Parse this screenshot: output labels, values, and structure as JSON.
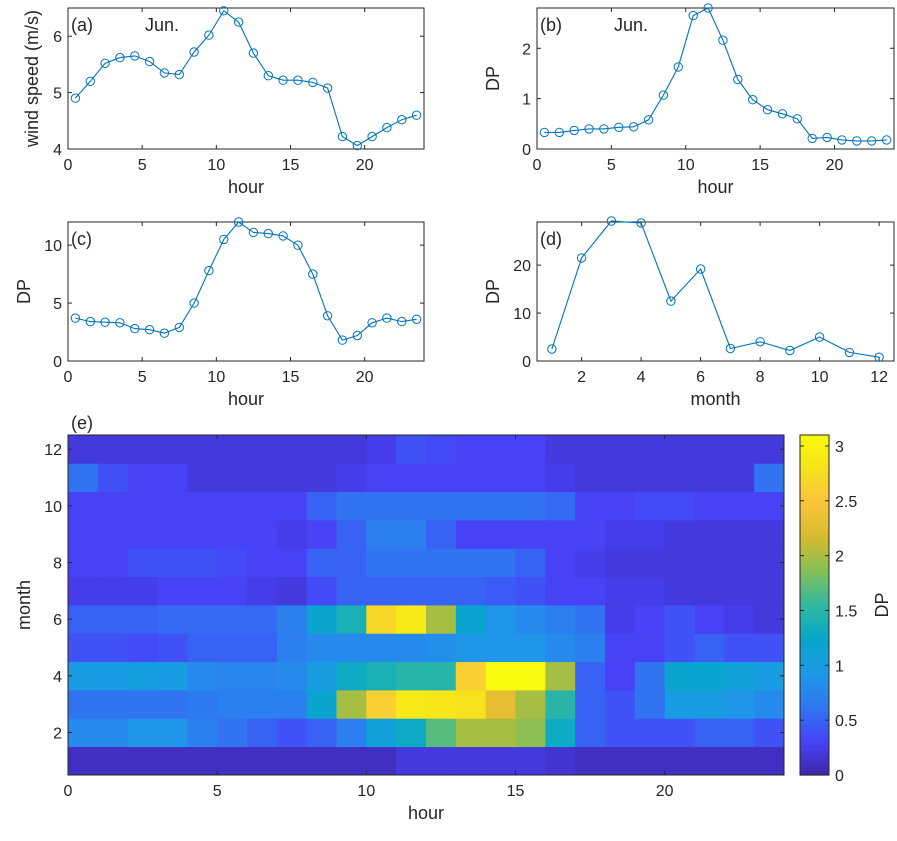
{
  "colorscale": [
    "#3e26a8",
    "#4743f8",
    "#2f76f1",
    "#1e99e8",
    "#06a7cb",
    "#2fb8a1",
    "#82c057",
    "#d5bb2e",
    "#fbc33d",
    "#f6e11d",
    "#f9fb0e"
  ],
  "line_color": "#0072BD",
  "chart_data": [
    {
      "id": "a",
      "type": "line",
      "panel_label": "(a)",
      "annotation": "Jun.",
      "xlabel": "hour",
      "ylabel": "wind speed (m/s)",
      "xlim": [
        0,
        24
      ],
      "ylim": [
        4,
        6.5
      ],
      "xticks": [
        0,
        5,
        10,
        15,
        20
      ],
      "yticks": [
        4,
        5,
        6
      ],
      "marker": "circle",
      "x": [
        0.5,
        1.5,
        2.5,
        3.5,
        4.5,
        5.5,
        6.5,
        7.5,
        8.5,
        9.5,
        10.5,
        11.5,
        12.5,
        13.5,
        14.5,
        15.5,
        16.5,
        17.5,
        18.5,
        19.5,
        20.5,
        21.5,
        22.5,
        23.5
      ],
      "y": [
        4.9,
        5.2,
        5.52,
        5.62,
        5.65,
        5.55,
        5.35,
        5.32,
        5.72,
        6.02,
        6.45,
        6.25,
        5.7,
        5.3,
        5.22,
        5.22,
        5.18,
        5.08,
        4.22,
        4.06,
        4.22,
        4.38,
        4.52,
        4.6
      ]
    },
    {
      "id": "b",
      "type": "line",
      "panel_label": "(b)",
      "annotation": "Jun.",
      "xlabel": "hour",
      "ylabel": "DP",
      "xlim": [
        0,
        24
      ],
      "ylim": [
        0,
        2.8
      ],
      "xticks": [
        0,
        5,
        10,
        15,
        20
      ],
      "yticks": [
        0,
        1,
        2
      ],
      "marker": "circle",
      "x": [
        0.5,
        1.5,
        2.5,
        3.5,
        4.5,
        5.5,
        6.5,
        7.5,
        8.5,
        9.5,
        10.5,
        11.5,
        12.5,
        13.5,
        14.5,
        15.5,
        16.5,
        17.5,
        18.5,
        19.5,
        20.5,
        21.5,
        22.5,
        23.5
      ],
      "y": [
        0.33,
        0.33,
        0.37,
        0.4,
        0.4,
        0.43,
        0.44,
        0.58,
        1.07,
        1.63,
        2.65,
        2.8,
        2.16,
        1.38,
        0.98,
        0.78,
        0.7,
        0.6,
        0.21,
        0.23,
        0.18,
        0.16,
        0.16,
        0.18
      ]
    },
    {
      "id": "c",
      "type": "line",
      "panel_label": "(c)",
      "xlabel": "hour",
      "ylabel": "DP",
      "xlim": [
        0,
        24
      ],
      "ylim": [
        0,
        12
      ],
      "xticks": [
        0,
        5,
        10,
        15,
        20
      ],
      "yticks": [
        0,
        5,
        10
      ],
      "marker": "circle",
      "x": [
        0.5,
        1.5,
        2.5,
        3.5,
        4.5,
        5.5,
        6.5,
        7.5,
        8.5,
        9.5,
        10.5,
        11.5,
        12.5,
        13.5,
        14.5,
        15.5,
        16.5,
        17.5,
        18.5,
        19.5,
        20.5,
        21.5,
        22.5,
        23.5
      ],
      "y": [
        3.7,
        3.4,
        3.35,
        3.3,
        2.8,
        2.7,
        2.4,
        2.9,
        5.0,
        7.8,
        10.5,
        12.0,
        11.1,
        11.0,
        10.8,
        10.0,
        7.5,
        3.9,
        1.8,
        2.2,
        3.3,
        3.7,
        3.4,
        3.6
      ]
    },
    {
      "id": "d",
      "type": "line",
      "panel_label": "(d)",
      "xlabel": "month",
      "ylabel": "DP",
      "xlim": [
        0.5,
        12.5
      ],
      "ylim": [
        0,
        29
      ],
      "xticks": [
        2,
        4,
        6,
        8,
        10,
        12
      ],
      "yticks": [
        0,
        10,
        20
      ],
      "marker": "circle",
      "x": [
        1,
        2,
        3,
        4,
        5,
        6,
        7,
        8,
        9,
        10,
        11,
        12
      ],
      "y": [
        2.5,
        21.5,
        29.2,
        28.8,
        12.5,
        19.2,
        2.6,
        4.0,
        2.2,
        5.0,
        1.8,
        0.8
      ]
    },
    {
      "id": "e",
      "type": "heatmap",
      "panel_label": "(e)",
      "xlabel": "hour",
      "ylabel": "month",
      "colorbar_label": "DP",
      "xlim": [
        0,
        24
      ],
      "ylim": [
        0.5,
        12.5
      ],
      "clim": [
        0,
        3.1
      ],
      "xticks": [
        0,
        5,
        10,
        15,
        20
      ],
      "yticks": [
        2,
        4,
        6,
        8,
        10,
        12
      ],
      "colorbar_ticks": [
        0,
        0.5,
        1,
        1.5,
        2,
        2.5,
        3
      ],
      "colorbar_ticklabels": [
        "0",
        "0.5",
        "1",
        "1.5",
        "2",
        "2.5",
        "3"
      ],
      "rows_month_1_to_12": [
        [
          0.1,
          0.1,
          0.1,
          0.1,
          0.1,
          0.1,
          0.1,
          0.1,
          0.1,
          0.1,
          0.1,
          0.2,
          0.2,
          0.2,
          0.2,
          0.2,
          0.15,
          0.1,
          0.1,
          0.1,
          0.1,
          0.1,
          0.1,
          0.1
        ],
        [
          0.8,
          0.8,
          0.9,
          0.9,
          0.7,
          0.6,
          0.5,
          0.4,
          0.5,
          0.7,
          1.1,
          1.3,
          1.7,
          2.0,
          2.0,
          1.9,
          1.3,
          0.5,
          0.4,
          0.4,
          0.4,
          0.5,
          0.5,
          0.4
        ],
        [
          0.6,
          0.6,
          0.6,
          0.6,
          0.65,
          0.7,
          0.7,
          0.7,
          1.2,
          2.0,
          2.6,
          2.9,
          2.85,
          2.8,
          2.3,
          2.0,
          1.5,
          0.5,
          0.4,
          0.6,
          1.0,
          1.0,
          0.9,
          0.8
        ],
        [
          1.0,
          1.0,
          1.05,
          1.0,
          0.8,
          0.75,
          0.75,
          0.8,
          1.0,
          1.3,
          1.4,
          1.5,
          1.5,
          2.6,
          3.1,
          3.1,
          2.0,
          0.5,
          0.3,
          0.6,
          1.2,
          1.2,
          1.1,
          1.0
        ],
        [
          0.4,
          0.4,
          0.35,
          0.4,
          0.5,
          0.5,
          0.5,
          0.7,
          0.8,
          0.8,
          0.8,
          0.8,
          0.85,
          0.9,
          0.9,
          0.9,
          0.8,
          0.7,
          0.3,
          0.3,
          0.4,
          0.5,
          0.4,
          0.4
        ],
        [
          0.5,
          0.5,
          0.5,
          0.55,
          0.55,
          0.55,
          0.55,
          0.7,
          1.2,
          1.4,
          2.7,
          2.9,
          2.0,
          1.2,
          0.9,
          0.8,
          0.7,
          0.6,
          0.25,
          0.3,
          0.4,
          0.3,
          0.25,
          0.2
        ],
        [
          0.25,
          0.25,
          0.25,
          0.3,
          0.3,
          0.3,
          0.25,
          0.2,
          0.35,
          0.5,
          0.5,
          0.5,
          0.5,
          0.5,
          0.45,
          0.4,
          0.3,
          0.3,
          0.25,
          0.25,
          0.2,
          0.2,
          0.2,
          0.2
        ],
        [
          0.3,
          0.3,
          0.4,
          0.4,
          0.4,
          0.35,
          0.3,
          0.3,
          0.5,
          0.5,
          0.6,
          0.6,
          0.6,
          0.6,
          0.6,
          0.5,
          0.3,
          0.25,
          0.2,
          0.2,
          0.2,
          0.2,
          0.2,
          0.2
        ],
        [
          0.3,
          0.3,
          0.3,
          0.3,
          0.3,
          0.3,
          0.3,
          0.25,
          0.3,
          0.5,
          0.7,
          0.7,
          0.5,
          0.3,
          0.3,
          0.3,
          0.3,
          0.3,
          0.25,
          0.25,
          0.2,
          0.2,
          0.2,
          0.2
        ],
        [
          0.3,
          0.3,
          0.3,
          0.3,
          0.3,
          0.3,
          0.3,
          0.3,
          0.5,
          0.6,
          0.6,
          0.6,
          0.6,
          0.6,
          0.6,
          0.6,
          0.55,
          0.3,
          0.3,
          0.35,
          0.35,
          0.3,
          0.3,
          0.3
        ],
        [
          0.6,
          0.4,
          0.3,
          0.3,
          0.2,
          0.2,
          0.2,
          0.2,
          0.2,
          0.25,
          0.3,
          0.3,
          0.3,
          0.3,
          0.3,
          0.3,
          0.25,
          0.2,
          0.2,
          0.2,
          0.2,
          0.2,
          0.2,
          0.6
        ],
        [
          0.2,
          0.2,
          0.2,
          0.2,
          0.2,
          0.2,
          0.2,
          0.2,
          0.2,
          0.2,
          0.25,
          0.4,
          0.35,
          0.3,
          0.3,
          0.3,
          0.2,
          0.2,
          0.2,
          0.2,
          0.2,
          0.2,
          0.2,
          0.2
        ]
      ]
    }
  ]
}
